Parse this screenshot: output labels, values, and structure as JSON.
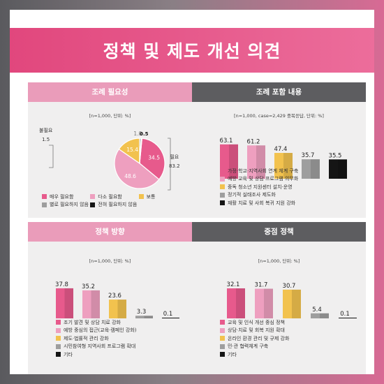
{
  "title": "정책 및 제도 개선 의견",
  "colors": {
    "c1": "#e75a8c",
    "c2": "#ee9fbf",
    "c3": "#f2c24e",
    "c4": "#9e9e9e",
    "c5": "#151515"
  },
  "panels": {
    "need": {
      "header": "조례 필요성",
      "note": "[n=1,000, 단위: %]",
      "not_needed": {
        "label": "불필요",
        "value": "1.5"
      },
      "needed": {
        "label": "필요",
        "value": "83.2"
      },
      "legend": [
        "매우 필요함",
        "다소 필요함",
        "보통",
        "별로 필요하지 않음",
        "전혀 필요하지 않음"
      ]
    },
    "content": {
      "header": "조례 포함 내용",
      "note": "[n=1,000, case=2,429 중복응답, 단위: %]",
      "legend": [
        "가정·학교·지역사회 연계 체계 구축",
        "예방 교육 및 상담 프로그램 의무화",
        "중독 청소년 지원센터 설치·운영",
        "정기적 실태조사 제도화",
        "재활 치료 및 사회 복귀 지원 강화"
      ]
    },
    "direction": {
      "header": "정책 방향",
      "note": "[n=1,000, 단위: %]",
      "legend": [
        "조기 발견 및 상담 치료 강화",
        "예방 중심의 접근(교육·캠페인 강화)",
        "제도·법률적 관리 강화",
        "시민참여형 지역사회 프로그램 확대",
        "기타"
      ]
    },
    "focus": {
      "header": "중점 정책",
      "note": "[n=1,000, 단위: %]",
      "legend": [
        "교육 및 인식 개선 중심 정책",
        "상담·치료 및 회복 지원 확대",
        "온라인 환경 관리 및 규제 강화",
        "민·관 협력체계 구축",
        "기타"
      ]
    }
  },
  "chart_data": [
    {
      "type": "pie",
      "title": "조례 필요성",
      "labels": [
        "매우 필요함",
        "다소 필요함",
        "보통",
        "별로 필요하지 않음",
        "전혀 필요하지 않음"
      ],
      "values": [
        34.5,
        48.6,
        15.4,
        1.0,
        0.5
      ]
    },
    {
      "type": "bar",
      "title": "조례 포함 내용",
      "categories": [
        "가정·학교·지역사회 연계 체계 구축",
        "예방 교육 및 상담 프로그램 의무화",
        "중독 청소년 지원센터 설치·운영",
        "정기적 실태조사 제도화",
        "재활 치료 및 사회 복귀 지원 강화"
      ],
      "values": [
        63.1,
        61.2,
        47.4,
        35.7,
        35.5
      ]
    },
    {
      "type": "bar",
      "title": "정책 방향",
      "categories": [
        "조기 발견 및 상담 치료 강화",
        "예방 중심의 접근(교육·캠페인 강화)",
        "제도·법률적 관리 강화",
        "시민참여형 지역사회 프로그램 확대",
        "기타"
      ],
      "values": [
        37.8,
        35.2,
        23.6,
        3.3,
        0.1
      ]
    },
    {
      "type": "bar",
      "title": "중점 정책",
      "categories": [
        "교육 및 인식 개선 중심 정책",
        "상담·치료 및 회복 지원 확대",
        "온라인 환경 관리 및 규제 강화",
        "민·관 협력체계 구축",
        "기타"
      ],
      "values": [
        32.1,
        31.7,
        30.7,
        5.4,
        0.1
      ]
    }
  ]
}
